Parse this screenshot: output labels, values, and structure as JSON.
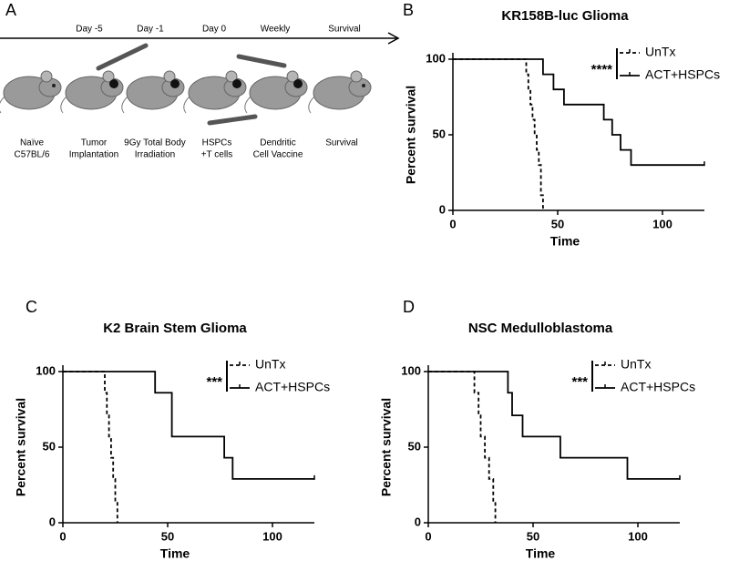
{
  "panel_labels": [
    "A",
    "B",
    "C",
    "D"
  ],
  "schematic": {
    "timeline": [
      "Day -5",
      "Day -1",
      "Day 0",
      "Weekly",
      "Survival"
    ],
    "steps": [
      [
        "Naïve",
        "C57BL/6"
      ],
      [
        "Tumor",
        "Implantation"
      ],
      [
        "9Gy Total Body",
        "Irradiation"
      ],
      [
        "HSPCs",
        "+T cells"
      ],
      [
        "Dendritic",
        "Cell Vaccine"
      ],
      [
        "Survival"
      ]
    ]
  },
  "chart_data": [
    {
      "type": "line",
      "step": true,
      "title": "KR158B-luc Glioma",
      "x_label": "Time",
      "y_label": "Percent survival",
      "annotation": "****",
      "xlim": [
        0,
        120
      ],
      "ylim": [
        0,
        100
      ],
      "xticks": [
        0,
        50,
        100
      ],
      "yticks": [
        0,
        50,
        100
      ],
      "series": [
        {
          "name": "UnTx",
          "color": "#000000",
          "dashed": true,
          "x": [
            0,
            35,
            36,
            37,
            38,
            39,
            40,
            41,
            42,
            43
          ],
          "values": [
            100,
            90,
            80,
            70,
            60,
            50,
            40,
            30,
            10,
            0
          ]
        },
        {
          "name": "ACT+HSPCs",
          "color": "#000000",
          "dashed": false,
          "x": [
            0,
            43,
            48,
            53,
            72,
            76,
            80,
            85,
            120
          ],
          "values": [
            100,
            90,
            80,
            70,
            60,
            50,
            40,
            30,
            30
          ]
        }
      ]
    },
    {
      "type": "line",
      "step": true,
      "title": "K2 Brain Stem Glioma",
      "x_label": "Time",
      "y_label": "Percent survival",
      "annotation": "***",
      "xlim": [
        0,
        120
      ],
      "ylim": [
        0,
        100
      ],
      "xticks": [
        0,
        50,
        100
      ],
      "yticks": [
        0,
        50,
        100
      ],
      "series": [
        {
          "name": "UnTx",
          "color": "#000000",
          "dashed": true,
          "x": [
            0,
            20,
            21,
            22,
            23,
            24,
            25,
            26
          ],
          "values": [
            100,
            86,
            71,
            57,
            43,
            29,
            14,
            0
          ]
        },
        {
          "name": "ACT+HSPCs",
          "color": "#000000",
          "dashed": false,
          "x": [
            0,
            44,
            52,
            77,
            81,
            120
          ],
          "values": [
            100,
            86,
            57,
            43,
            29,
            29
          ]
        }
      ]
    },
    {
      "type": "line",
      "step": true,
      "title": "NSC Medulloblastoma",
      "x_label": "Time",
      "y_label": "Percent survival",
      "annotation": "***",
      "xlim": [
        0,
        120
      ],
      "ylim": [
        0,
        100
      ],
      "xticks": [
        0,
        50,
        100
      ],
      "yticks": [
        0,
        50,
        100
      ],
      "series": [
        {
          "name": "UnTx",
          "color": "#000000",
          "dashed": true,
          "x": [
            0,
            22,
            24,
            25,
            27,
            29,
            31,
            32
          ],
          "values": [
            100,
            86,
            71,
            57,
            43,
            29,
            14,
            0
          ]
        },
        {
          "name": "ACT+HSPCs",
          "color": "#000000",
          "dashed": false,
          "x": [
            0,
            38,
            40,
            45,
            63,
            95,
            120
          ],
          "values": [
            100,
            86,
            71,
            57,
            43,
            29,
            29
          ]
        }
      ]
    }
  ]
}
